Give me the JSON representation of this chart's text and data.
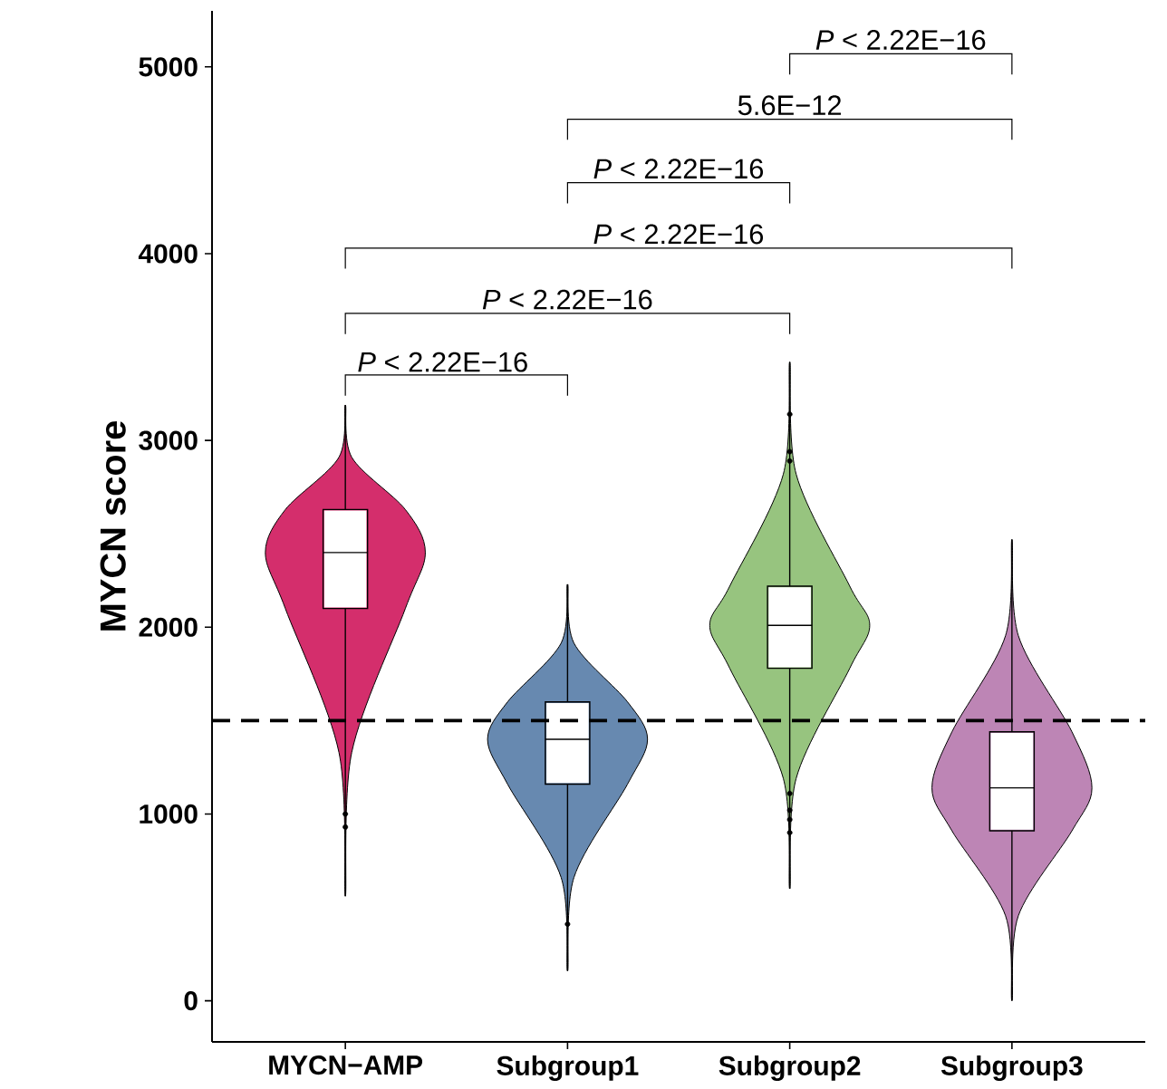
{
  "chart_data": {
    "type": "box",
    "ylabel": "MYCN score",
    "categories": [
      "MYCN−AMP",
      "Subgroup1",
      "Subgroup2",
      "Subgroup3"
    ],
    "colors": [
      "#d42e6c",
      "#6789b0",
      "#97c47f",
      "#bd85b5"
    ],
    "boxes": [
      {
        "low": 560,
        "q1": 2100,
        "median": 2400,
        "q3": 2630,
        "high": 3190,
        "outliers": [
          1000,
          930
        ]
      },
      {
        "low": 160,
        "q1": 1160,
        "median": 1400,
        "q3": 1600,
        "high": 2230,
        "outliers": [
          410
        ]
      },
      {
        "low": 600,
        "q1": 1780,
        "median": 2010,
        "q3": 2220,
        "high": 3420,
        "outliers": [
          3140,
          2940,
          2890,
          1110,
          1020,
          970,
          900
        ]
      },
      {
        "low": 0,
        "q1": 910,
        "median": 1140,
        "q3": 1440,
        "high": 2470
      }
    ],
    "ylim": [
      -220,
      5300
    ],
    "yticks": [
      0,
      1000,
      2000,
      3000,
      4000,
      5000
    ],
    "grid": false,
    "ref_lines": [
      {
        "axis": "y",
        "value": 1500,
        "line_style": "dashed",
        "color": "#000000"
      }
    ],
    "annotations": [
      "*P* < 2.22E−16",
      "5.6E−12",
      "*P* < 2.22E−16",
      "*P* < 2.22E−16",
      "*P* < 2.22E−16",
      "*P* < 2.22E−16"
    ]
  }
}
